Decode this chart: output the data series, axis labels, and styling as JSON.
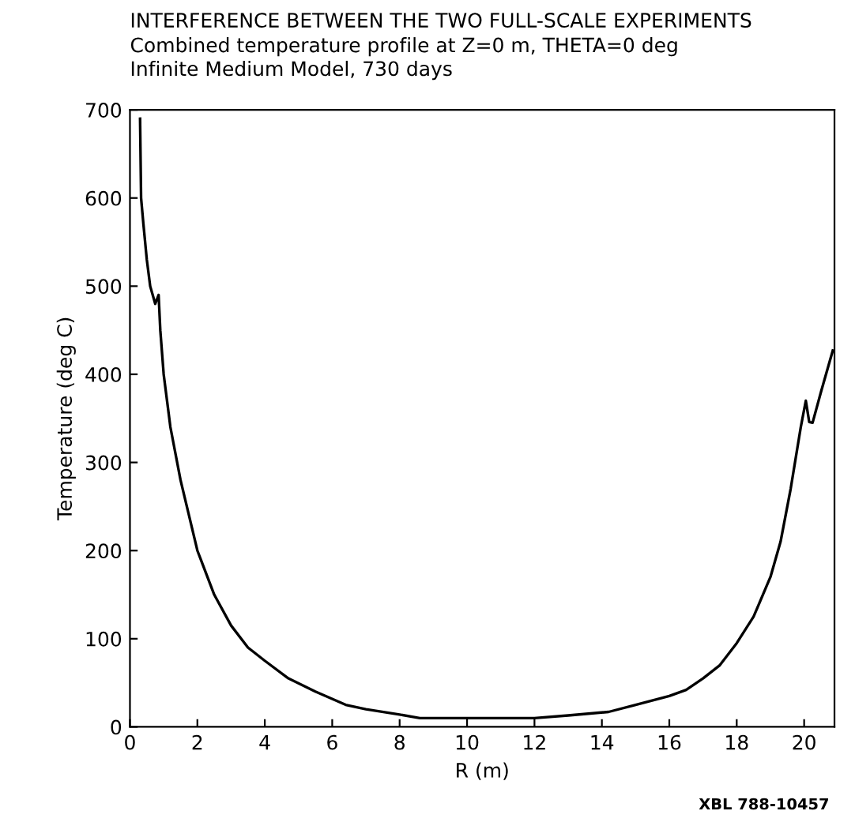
{
  "chart_data": {
    "type": "line",
    "title": "INTERFERENCE BETWEEN THE TWO FULL-SCALE EXPERIMENTS",
    "subtitle": "Combined temperature profile at Z=0 m, THETA=0 deg\nInfinite Medium Model, 730 days",
    "xlabel": "R (m)",
    "ylabel": "Temperature (deg C)",
    "annotations": [
      "XBL 788-10457"
    ],
    "series": [
      {
        "color": "#000000",
        "x": [
          0.3,
          0.33,
          0.4,
          0.5,
          0.6,
          0.75,
          0.85,
          0.9,
          1.0,
          1.2,
          1.5,
          2.0,
          2.5,
          3.0,
          3.5,
          4.0,
          4.7,
          5.5,
          6.4,
          7.0,
          8.0,
          8.6,
          10.0,
          12.0,
          13.0,
          14.2,
          15.0,
          16.0,
          16.5,
          17.0,
          17.5,
          18.0,
          18.5,
          19.0,
          19.3,
          19.6,
          19.9,
          20.05,
          20.15,
          20.25,
          20.5,
          20.85
        ],
        "values": [
          690,
          600,
          570,
          530,
          500,
          480,
          490,
          450,
          400,
          340,
          280,
          200,
          150,
          115,
          90,
          75,
          55,
          40,
          25,
          20,
          14,
          10,
          10,
          10,
          13,
          17,
          25,
          35,
          42,
          55,
          70,
          95,
          125,
          170,
          210,
          270,
          340,
          370,
          346,
          345,
          380,
          427
        ]
      }
    ],
    "xlim": [
      0,
      20.9
    ],
    "ylim": [
      0,
      700
    ],
    "xticks": [
      0,
      2,
      4,
      6,
      8,
      10,
      12,
      14,
      16,
      18,
      20
    ],
    "yticks": [
      0,
      100,
      200,
      300,
      400,
      500,
      600,
      700
    ],
    "grid": false,
    "legend": false,
    "marker": "none",
    "line_style": "solid"
  }
}
